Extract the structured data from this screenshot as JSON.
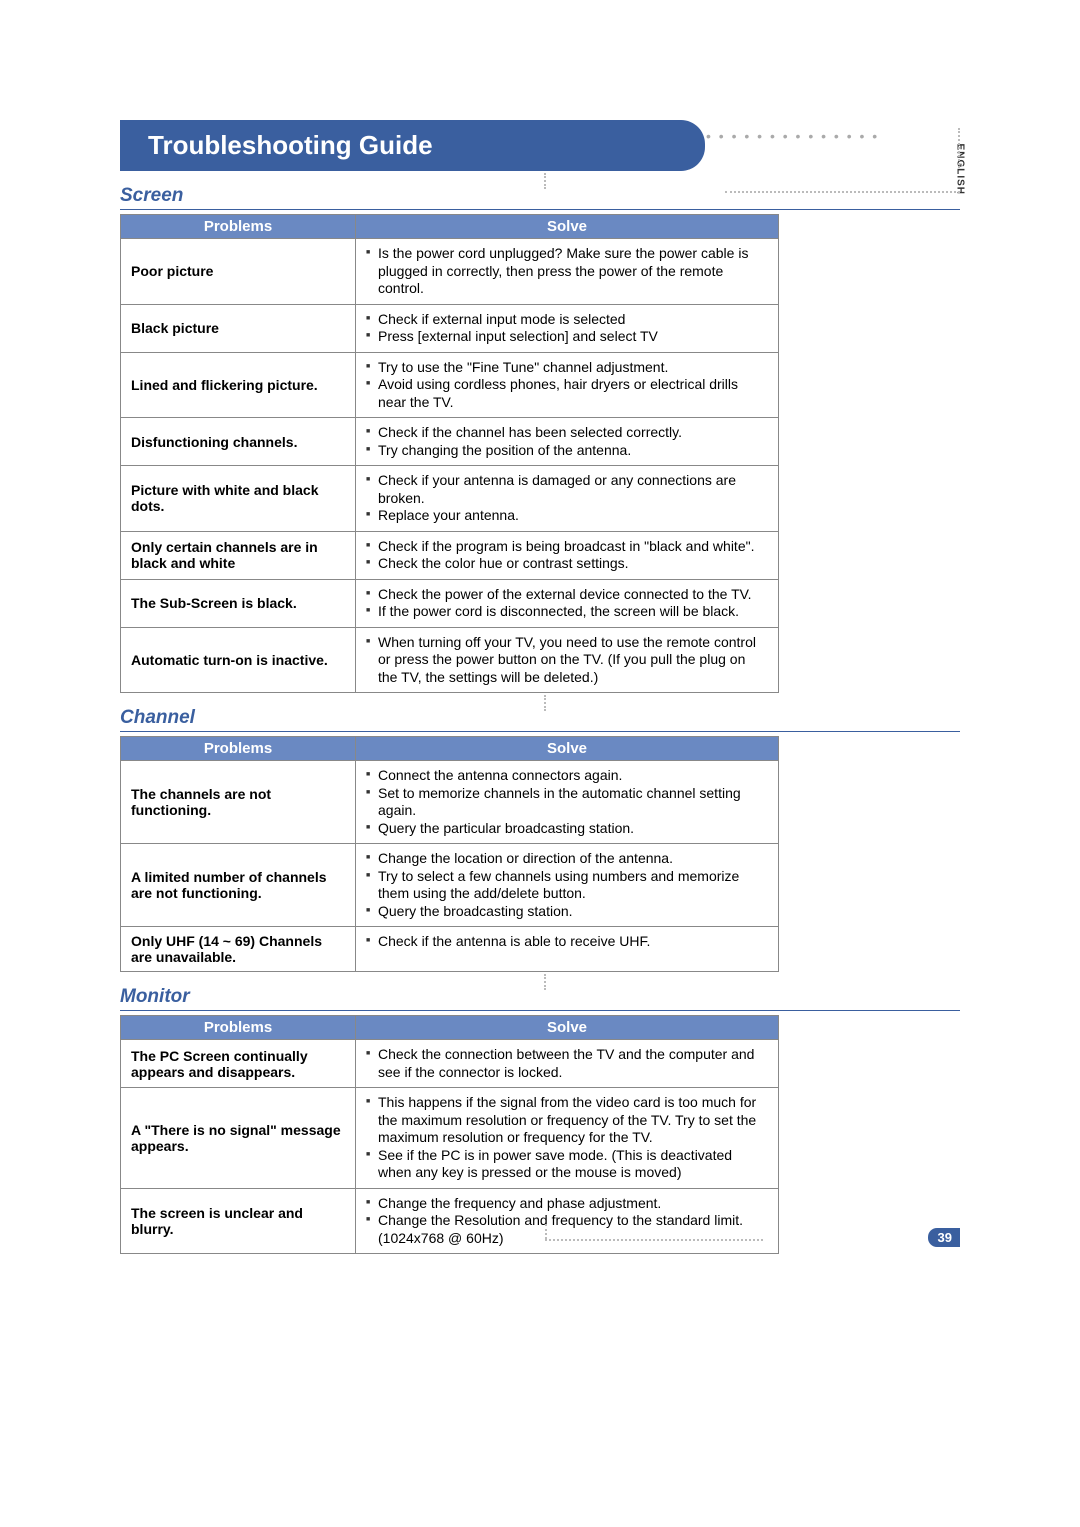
{
  "page": {
    "title": "Troubleshooting Guide",
    "lang_label": "ENGLISH",
    "page_number": "39"
  },
  "colors": {
    "accent": "#3a5f9f",
    "header_bg": "#6a89c2",
    "header_text": "#ffffff",
    "border": "#888888",
    "dot": "#bbbbbb",
    "text": "#000000"
  },
  "sections": [
    {
      "title": "Screen",
      "header": {
        "problems": "Problems",
        "solve": "Solve"
      },
      "rows": [
        {
          "problem": "Poor picture",
          "solve": [
            "Is the power cord unplugged? Make sure the power cable is plugged in correctly, then press the power of the remote control."
          ]
        },
        {
          "problem": "Black picture",
          "solve": [
            "Check if external input mode is selected",
            "Press [external input selection] and select TV"
          ]
        },
        {
          "problem": "Lined and flickering picture.",
          "solve": [
            "Try to use the \"Fine Tune\" channel adjustment.",
            "Avoid using cordless phones, hair dryers or electrical drills near the TV."
          ]
        },
        {
          "problem": "Disfunctioning channels.",
          "solve": [
            "Check if the channel has been selected correctly.",
            "Try changing the position of the antenna."
          ]
        },
        {
          "problem": "Picture with white and black dots.",
          "solve": [
            "Check if your antenna is damaged or any connections are broken.",
            "Replace your antenna."
          ]
        },
        {
          "problem": "Only certain channels are in black and white",
          "solve": [
            "Check if the program is being broadcast in \"black and white\".",
            "Check the color hue or contrast settings."
          ]
        },
        {
          "problem": "The Sub-Screen is black.",
          "solve": [
            "Check the power of the external device connected to the TV.",
            "If the power cord is disconnected, the screen will be black."
          ]
        },
        {
          "problem": "Automatic turn-on is inactive.",
          "solve": [
            "When turning off your TV, you need to use the remote control or press the power button on the TV. (If you pull the plug on the TV, the settings will be deleted.)"
          ]
        }
      ]
    },
    {
      "title": "Channel",
      "header": {
        "problems": "Problems",
        "solve": "Solve"
      },
      "rows": [
        {
          "problem": "The channels are not functioning.",
          "solve": [
            "Connect the antenna connectors again.",
            "Set to memorize channels in the automatic channel setting again.",
            "Query the particular broadcasting station."
          ]
        },
        {
          "problem": "A limited number of channels are not functioning.",
          "solve": [
            "Change the location or direction of the antenna.",
            "Try to select a few channels using numbers and memorize them using the add/delete button.",
            "Query the broadcasting station."
          ]
        },
        {
          "problem": "Only UHF (14 ~ 69) Channels are unavailable.",
          "solve": [
            "Check if the antenna is able to receive UHF."
          ]
        }
      ]
    },
    {
      "title": "Monitor",
      "header": {
        "problems": "Problems",
        "solve": "Solve"
      },
      "rows": [
        {
          "problem": "The PC Screen continually appears and disappears.",
          "solve": [
            "Check the connection between the TV and the computer and see if the connector is locked."
          ]
        },
        {
          "problem": "A \"There is no signal\" message appears.",
          "solve": [
            "This happens if the signal from the video card is too much for the maximum resolution or frequency of the TV.\nTry to set the maximum resolution or frequency for the TV.",
            "See if the PC is in power save mode.\n(This is deactivated when any key is pressed or the mouse is moved)"
          ]
        },
        {
          "problem": "The screen is unclear and blurry.",
          "solve": [
            "Change the frequency and phase adjustment.",
            "Change the Resolution and frequency to the standard limit. (1024x768 @ 60Hz)"
          ]
        }
      ]
    }
  ]
}
